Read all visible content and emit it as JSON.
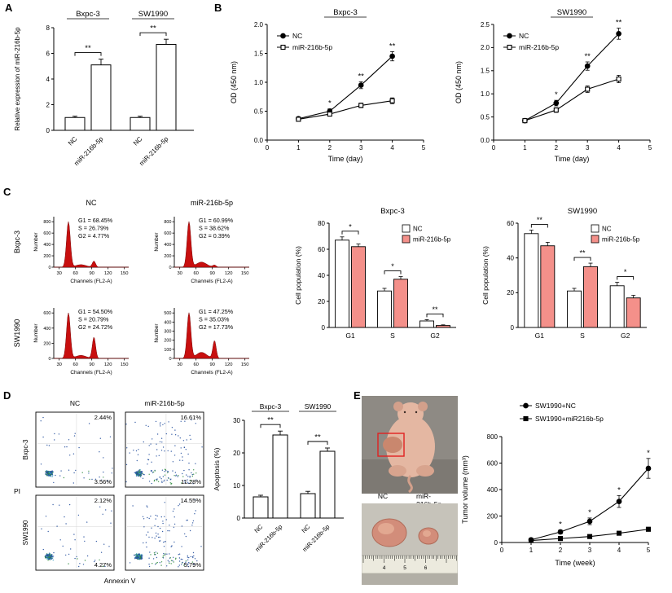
{
  "panel_labels": {
    "A": "A",
    "B": "B",
    "C": "C",
    "D": "D",
    "E": "E"
  },
  "colors": {
    "bar_nc": "#ffffff",
    "bar_mir": "#f4908a",
    "flow_fill": "#c80f0f",
    "axis": "#000000",
    "highlight_box": "#e02020"
  },
  "photos": {
    "mouse_caption_labels": [
      "NC",
      "miR-216b-5p"
    ],
    "ruler_numbers": [
      "4",
      "5",
      "6"
    ]
  },
  "chart_data": [
    {
      "id": "A",
      "type": "bar",
      "ylabel": "Relative expression of miR-216b-5p",
      "ylim": [
        0,
        8
      ],
      "yticks": [
        "0",
        "2",
        "4",
        "6",
        "8"
      ],
      "group_labels": [
        "Bxpc-3",
        "SW1990"
      ],
      "categories": [
        "NC",
        "miR-216b-5p",
        "NC",
        "miR-216b-5p"
      ],
      "values": [
        1.0,
        5.1,
        1.0,
        6.7
      ],
      "errors": [
        0.1,
        0.45,
        0.1,
        0.4
      ],
      "sig": [
        {
          "pair": [
            0,
            1
          ],
          "text": "**"
        },
        {
          "pair": [
            2,
            3
          ],
          "text": "**"
        }
      ]
    },
    {
      "id": "B1",
      "type": "line",
      "title": "Bxpc-3",
      "xlabel": "Time (day)",
      "ylabel": "OD (450 nm)",
      "xlim": [
        0,
        5
      ],
      "xticks": [
        "0",
        "1",
        "2",
        "3",
        "4",
        "5"
      ],
      "ylim": [
        0,
        2.0
      ],
      "yticks": [
        "0.0",
        "0.5",
        "1.0",
        "1.5",
        "2.0"
      ],
      "x": [
        1,
        2,
        3,
        4
      ],
      "series": [
        {
          "name": "NC",
          "marker": "circle",
          "filled": true,
          "values": [
            0.37,
            0.5,
            0.95,
            1.45
          ],
          "errors": [
            0.03,
            0.04,
            0.06,
            0.08
          ]
        },
        {
          "name": "miR-216b-5p",
          "marker": "square",
          "filled": false,
          "values": [
            0.36,
            0.45,
            0.6,
            0.68
          ],
          "errors": [
            0.03,
            0.03,
            0.04,
            0.05
          ]
        }
      ],
      "sig": [
        {
          "x": 2,
          "text": "*"
        },
        {
          "x": 3,
          "text": "**"
        },
        {
          "x": 4,
          "text": "**"
        }
      ]
    },
    {
      "id": "B2",
      "type": "line",
      "title": "SW1990",
      "xlabel": "Time (day)",
      "ylabel": "OD (450 nm)",
      "xlim": [
        0,
        5
      ],
      "xticks": [
        "0",
        "1",
        "2",
        "3",
        "4",
        "5"
      ],
      "ylim": [
        0,
        2.5
      ],
      "yticks": [
        "0.0",
        "0.5",
        "1.0",
        "1.5",
        "2.0",
        "2.5"
      ],
      "x": [
        1,
        2,
        3,
        4
      ],
      "series": [
        {
          "name": "NC",
          "marker": "circle",
          "filled": true,
          "values": [
            0.42,
            0.8,
            1.6,
            2.3
          ],
          "errors": [
            0.04,
            0.06,
            0.09,
            0.12
          ]
        },
        {
          "name": "miR-216b-5p",
          "marker": "square",
          "filled": false,
          "values": [
            0.42,
            0.65,
            1.1,
            1.32
          ],
          "errors": [
            0.04,
            0.05,
            0.07,
            0.08
          ]
        }
      ],
      "sig": [
        {
          "x": 2,
          "text": "*"
        },
        {
          "x": 3,
          "text": "**"
        },
        {
          "x": 4,
          "text": "**"
        }
      ]
    },
    {
      "id": "C_flow",
      "type": "flow-histograms",
      "col_headers": [
        "NC",
        "miR-216b-5p"
      ],
      "row_headers": [
        "Bxpc-3",
        "SW1990"
      ],
      "xlabel": "Channels (FL2-A)",
      "ylabel": "Number",
      "xticks": [
        "30",
        "60",
        "90",
        "120",
        "150"
      ],
      "cells": [
        {
          "row": 0,
          "col": 0,
          "stats": [
            "G1 = 68.45%",
            "S = 26.79%",
            "G2 = 4.77%"
          ],
          "yticks": [
            "0",
            "200",
            "400",
            "600",
            "800"
          ],
          "g2_height": 0.12,
          "s_height": 0.05
        },
        {
          "row": 0,
          "col": 1,
          "stats": [
            "G1 = 60.99%",
            "S = 38.62%",
            "G2 = 0.39%"
          ],
          "yticks": [
            "0",
            "200",
            "400",
            "600",
            "800"
          ],
          "g2_height": 0.04,
          "s_height": 0.1
        },
        {
          "row": 1,
          "col": 0,
          "stats": [
            "G1 = 54.50%",
            "S = 20.79%",
            "G2 = 24.72%"
          ],
          "yticks": [
            "0",
            "200",
            "400",
            "600"
          ],
          "g2_height": 0.42,
          "s_height": 0.06
        },
        {
          "row": 1,
          "col": 1,
          "stats": [
            "G1 = 47.25%",
            "S = 35.03%",
            "G2 = 17.73%"
          ],
          "yticks": [
            "0",
            "100",
            "200",
            "300",
            "400",
            "500"
          ],
          "g2_height": 0.35,
          "s_height": 0.12
        }
      ]
    },
    {
      "id": "C_bar1",
      "type": "bar",
      "title": "Bxpc-3",
      "ylabel": "Cell population (%)",
      "categories": [
        "G1",
        "S",
        "G2"
      ],
      "ylim": [
        0,
        80
      ],
      "yticks": [
        "0",
        "20",
        "40",
        "60",
        "80"
      ],
      "series": [
        {
          "name": "NC",
          "color": "#ffffff",
          "values": [
            67,
            28,
            5
          ],
          "errors": [
            2.5,
            2,
            1
          ]
        },
        {
          "name": "miR-216b-5p",
          "color": "#f4908a",
          "values": [
            62,
            37,
            1.5
          ],
          "errors": [
            2,
            2,
            0.5
          ]
        }
      ],
      "sig": [
        "*",
        "*",
        "**"
      ]
    },
    {
      "id": "C_bar2",
      "type": "bar",
      "title": "SW1990",
      "ylabel": "Cell population (%)",
      "categories": [
        "G1",
        "S",
        "G2"
      ],
      "ylim": [
        0,
        60
      ],
      "yticks": [
        "0",
        "20",
        "40",
        "60"
      ],
      "series": [
        {
          "name": "NC",
          "color": "#ffffff",
          "values": [
            54,
            21,
            24
          ],
          "errors": [
            2,
            1.5,
            2
          ]
        },
        {
          "name": "miR-216b-5p",
          "color": "#f4908a",
          "values": [
            47,
            35,
            17
          ],
          "errors": [
            2,
            2,
            1.5
          ]
        }
      ],
      "sig": [
        "**",
        "**",
        "*"
      ]
    },
    {
      "id": "D_scatter",
      "type": "scatter",
      "col_headers": [
        "NC",
        "miR-216b-5p"
      ],
      "row_headers": [
        "Bxpc-3",
        "SW1990"
      ],
      "xlabel": "Annexin V",
      "ylabel": "PI",
      "cells": [
        {
          "row": 0,
          "col": 0,
          "top_pct": "2.44%",
          "bottom_pct": "3.56%",
          "apoptotic": "low"
        },
        {
          "row": 0,
          "col": 1,
          "top_pct": "16.61%",
          "bottom_pct": "11.28%",
          "apoptotic": "high"
        },
        {
          "row": 1,
          "col": 0,
          "top_pct": "2.12%",
          "bottom_pct": "4.27%",
          "apoptotic": "low"
        },
        {
          "row": 1,
          "col": 1,
          "top_pct": "14.55%",
          "bottom_pct": "5.79%",
          "apoptotic": "high"
        }
      ]
    },
    {
      "id": "D_bar",
      "type": "bar",
      "ylabel": "Apoptosis (%)",
      "ylim": [
        0,
        30
      ],
      "yticks": [
        "0",
        "10",
        "20",
        "30"
      ],
      "group_labels": [
        "Bxpc-3",
        "SW1990"
      ],
      "categories": [
        "NC",
        "miR-216b-5p",
        "NC",
        "miR-216b-5p"
      ],
      "values": [
        6.5,
        25.5,
        7.5,
        20.5
      ],
      "errors": [
        0.5,
        1.2,
        0.7,
        1.0
      ],
      "sig": [
        {
          "pair": [
            0,
            1
          ],
          "text": "**"
        },
        {
          "pair": [
            2,
            3
          ],
          "text": "**"
        }
      ]
    },
    {
      "id": "E_line",
      "type": "line",
      "xlabel": "Time (week)",
      "ylabel": "Tumor volume (mm³)",
      "xlim": [
        0,
        5
      ],
      "xticks": [
        "0",
        "1",
        "2",
        "3",
        "4",
        "5"
      ],
      "ylim": [
        0,
        800
      ],
      "yticks": [
        "0",
        "200",
        "400",
        "600",
        "800"
      ],
      "x": [
        1,
        2,
        3,
        4,
        5
      ],
      "series": [
        {
          "name": "SW1990+NC",
          "marker": "circle",
          "filled": true,
          "values": [
            20,
            80,
            160,
            310,
            560
          ],
          "errors": [
            8,
            15,
            25,
            45,
            75
          ]
        },
        {
          "name": "SW1990+miR216b-5p",
          "marker": "square",
          "filled": true,
          "values": [
            15,
            30,
            45,
            70,
            100
          ],
          "errors": [
            5,
            8,
            10,
            12,
            15
          ]
        }
      ],
      "sig": [
        {
          "x": 2,
          "text": "*"
        },
        {
          "x": 3,
          "text": "*"
        },
        {
          "x": 4,
          "text": "*"
        },
        {
          "x": 5,
          "text": "*"
        }
      ]
    }
  ]
}
